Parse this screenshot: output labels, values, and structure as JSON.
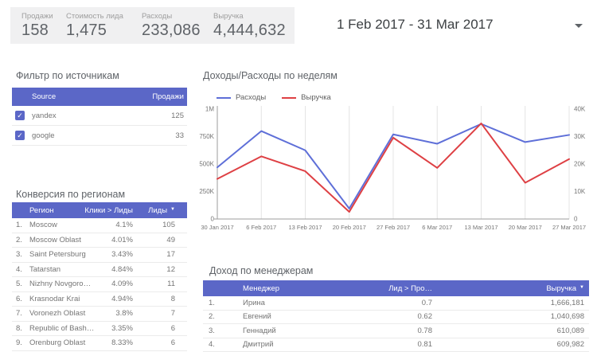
{
  "colors": {
    "accent": "#5b67c7",
    "expenses_line": "#5e6fd8",
    "revenue_line": "#de4044",
    "kpi_bg": "#f0f0f1"
  },
  "icons": {
    "checkbox_check": "✓",
    "sort_desc": "▼"
  },
  "scorecards": [
    {
      "label": "Продажи",
      "value": "158"
    },
    {
      "label": "Стоимость лида",
      "value": "1,475"
    },
    {
      "label": "Расходы",
      "value": "233,086"
    },
    {
      "label": "Выручка",
      "value": "4,444,632"
    }
  ],
  "date_range": {
    "label": "1 Feb 2017 - 31 Mar 2017"
  },
  "source_filter": {
    "title": "Фильтр по источникам",
    "columns": [
      "Source",
      "Продажи"
    ],
    "rows": [
      {
        "name": "yandex",
        "value": "125",
        "checked": true
      },
      {
        "name": "google",
        "value": "33",
        "checked": true
      }
    ]
  },
  "region_table": {
    "title": "Конверсия по регионам",
    "header": {
      "region": "Регион",
      "ctr": "Клики > Лиды",
      "leads": "Лиды"
    },
    "sorted_by": "leads_desc",
    "rows": [
      [
        "1.",
        "Moscow",
        "4.1%",
        "105"
      ],
      [
        "2.",
        "Moscow Oblast",
        "4.01%",
        "49"
      ],
      [
        "3.",
        "Saint Petersburg",
        "3.43%",
        "17"
      ],
      [
        "4.",
        "Tatarstan",
        "4.84%",
        "12"
      ],
      [
        "5.",
        "Nizhny Novgoro…",
        "4.09%",
        "11"
      ],
      [
        "6.",
        "Krasnodar Krai",
        "4.94%",
        "8"
      ],
      [
        "7.",
        "Voronezh Oblast",
        "3.8%",
        "7"
      ],
      [
        "8.",
        "Republic of Bash…",
        "3.35%",
        "6"
      ],
      [
        "9.",
        "Orenburg Oblast",
        "8.33%",
        "6"
      ]
    ]
  },
  "managers_table": {
    "title": "Доход по менеджерам",
    "header": {
      "manager": "Менеджер",
      "ratio": "Лид > Про…",
      "revenue": "Выручка"
    },
    "sorted_by": "revenue_desc",
    "rows": [
      [
        "1.",
        "Ирина",
        "0.7",
        "1,666,181"
      ],
      [
        "2.",
        "Евгений",
        "0.62",
        "1,040,698"
      ],
      [
        "3.",
        "Геннадий",
        "0.78",
        "610,089"
      ],
      [
        "4.",
        "Дмитрий",
        "0.81",
        "609,982"
      ]
    ]
  },
  "chart_data": {
    "type": "line",
    "title": "Доходы/Расходы по неделям",
    "x": [
      "30 Jan 2017",
      "6 Feb 2017",
      "13 Feb 2017",
      "20 Feb 2017",
      "27 Feb 2017",
      "6 Mar 2017",
      "13 Mar 2017",
      "20 Mar 2017",
      "27 Mar 2017"
    ],
    "series": [
      {
        "name": "Расходы",
        "color": "#5e6fd8",
        "axis": "right",
        "values": [
          18800,
          32000,
          25000,
          3800,
          30800,
          27400,
          34600,
          28000,
          30600
        ]
      },
      {
        "name": "Выручка",
        "color": "#de4044",
        "axis": "left",
        "values": [
          365000,
          570000,
          435000,
          65000,
          740000,
          465000,
          870000,
          330000,
          545000
        ]
      }
    ],
    "left_axis": {
      "min": 0,
      "max": 1000000,
      "ticks": [
        "0",
        "250K",
        "500K",
        "750K",
        "1M"
      ]
    },
    "right_axis": {
      "min": 0,
      "max": 40000,
      "ticks": [
        "0",
        "10K",
        "20K",
        "30K",
        "40K"
      ]
    },
    "grid": "vertical",
    "legend_position": "top"
  }
}
